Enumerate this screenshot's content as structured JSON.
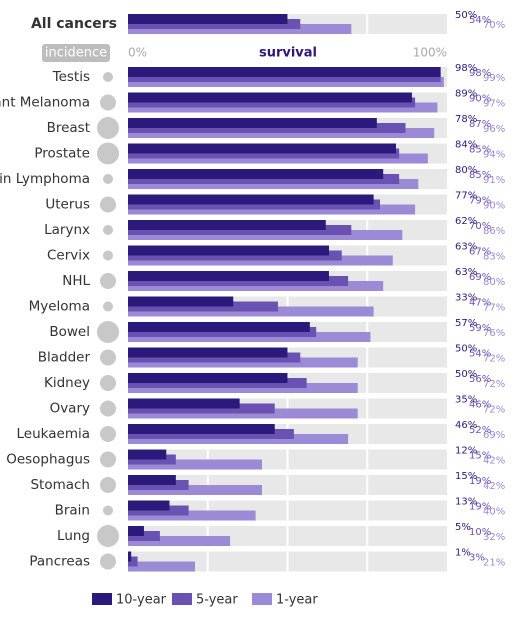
{
  "chart_data": {
    "type": "bar",
    "orientation": "horizontal",
    "incidence_label": "incidence",
    "xlabel": "survival",
    "xlim": [
      0,
      100
    ],
    "xticks": [
      {
        "value": 0,
        "label": "0%"
      },
      {
        "value": 100,
        "label": "100%"
      }
    ],
    "categories": [
      "All cancers",
      "Testis",
      "Malignant Melanoma",
      "Breast",
      "Prostate",
      "Hodgkin Lymphoma",
      "Uterus",
      "Larynx",
      "Cervix",
      "NHL",
      "Myeloma",
      "Bowel",
      "Bladder",
      "Kidney",
      "Ovary",
      "Leukaemia",
      "Oesophagus",
      "Stomach",
      "Brain",
      "Lung",
      "Pancreas"
    ],
    "incidence": [
      null,
      1,
      2,
      3,
      3,
      1,
      2,
      1,
      1,
      2,
      1,
      3,
      2,
      2,
      2,
      2,
      2,
      2,
      1,
      3,
      2
    ],
    "series": [
      {
        "name": "10-year",
        "color": "#2b1a7c",
        "values": [
          50,
          98,
          89,
          78,
          84,
          80,
          77,
          62,
          63,
          63,
          33,
          57,
          50,
          50,
          35,
          46,
          12,
          15,
          13,
          5,
          1
        ],
        "value_labels": [
          "50%",
          "98%",
          "89%",
          "78%",
          "84%",
          "80%",
          "77%",
          "62%",
          "63%",
          "63%",
          "33%",
          "57%",
          "50%",
          "50%",
          "35%",
          "46%",
          "12%",
          "15%",
          "13%",
          "5%",
          "1%"
        ]
      },
      {
        "name": "5-year",
        "color": "#6a52b2",
        "values": [
          54,
          98,
          90,
          87,
          85,
          85,
          79,
          70,
          67,
          69,
          47,
          59,
          54,
          56,
          46,
          52,
          15,
          19,
          19,
          10,
          3
        ],
        "value_labels": [
          "54%",
          "98%",
          "90%",
          "87%",
          "85%",
          "85%",
          "79%",
          "70%",
          "67%",
          "69%",
          "47%",
          "59%",
          "54%",
          "56%",
          "46%",
          "52%",
          "15%",
          "19%",
          "19%",
          "10%",
          "3%"
        ]
      },
      {
        "name": "1-year",
        "color": "#9c8ad6",
        "values": [
          70,
          99,
          97,
          96,
          94,
          91,
          90,
          86,
          83,
          80,
          77,
          76,
          72,
          72,
          72,
          69,
          42,
          42,
          40,
          32,
          21
        ],
        "value_labels": [
          "70%",
          "99%",
          "97%",
          "96%",
          "94%",
          "91%",
          "90%",
          "86%",
          "83%",
          "80%",
          "77%",
          "76%",
          "72%",
          "72%",
          "72%",
          "69%",
          "42%",
          "42%",
          "40%",
          "32%",
          "21%"
        ]
      }
    ]
  }
}
